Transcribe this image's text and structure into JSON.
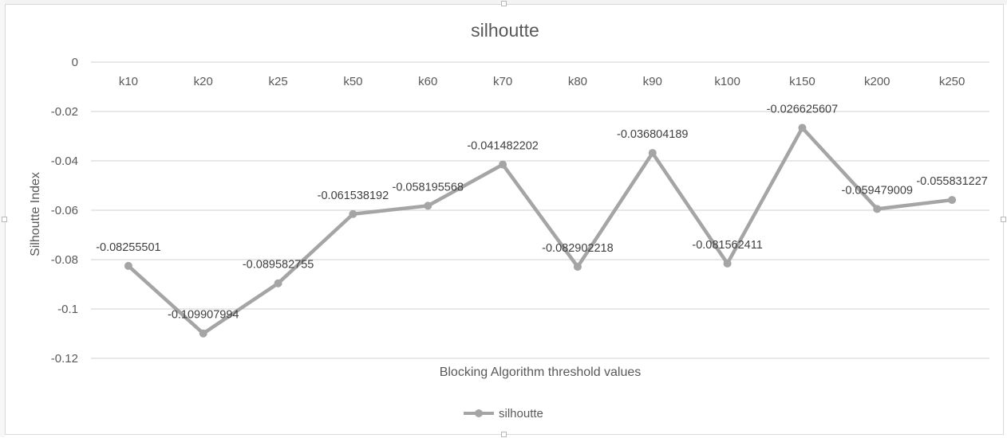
{
  "chart_data": {
    "type": "line",
    "title": "silhoutte",
    "xlabel": "Blocking Algorithm threshold values",
    "ylabel": "Silhoutte Index",
    "categories": [
      "k10",
      "k20",
      "k25",
      "k50",
      "k60",
      "k70",
      "k80",
      "k90",
      "k100",
      "k150",
      "k200",
      "k250"
    ],
    "series": [
      {
        "name": "silhoutte",
        "values": [
          -0.08255501,
          -0.109907994,
          -0.089582755,
          -0.061538192,
          -0.058195568,
          -0.041482202,
          -0.082902218,
          -0.036804189,
          -0.081562411,
          -0.026625607,
          -0.059479009,
          -0.055831227
        ],
        "labels": [
          "-0.08255501",
          "-0.109907994",
          "-0.089582755",
          "-0.061538192",
          "-0.058195568",
          "-0.041482202",
          "-0.082902218",
          "-0.036804189",
          "-0.081562411",
          "-0.026625607",
          "-0.059479009",
          "-0.055831227"
        ]
      }
    ],
    "ylim": [
      -0.12,
      0
    ],
    "yticks": [
      "0",
      "-0.02",
      "-0.04",
      "-0.06",
      "-0.08",
      "-0.1",
      "-0.12"
    ],
    "grid": true,
    "legend_position": "bottom",
    "colors": {
      "series": "#a5a5a5",
      "grid": "#d9d9d9",
      "text": "#595959",
      "title": "#595959",
      "label": "#404040"
    }
  }
}
